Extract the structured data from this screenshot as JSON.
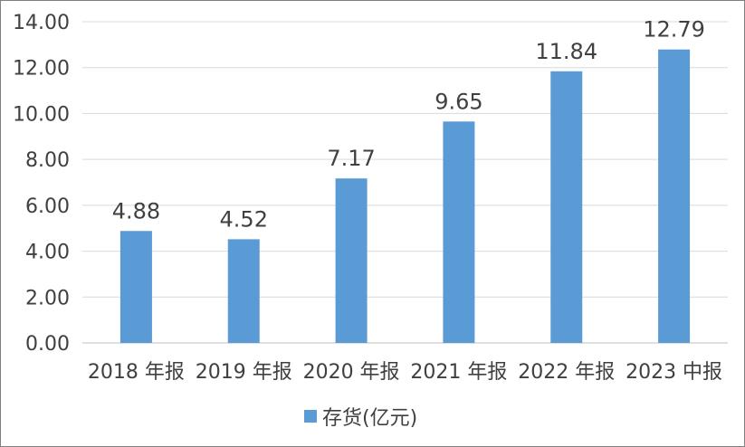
{
  "chart_data": {
    "type": "bar",
    "categories": [
      "2018 年报",
      "2019 年报",
      "2020 年报",
      "2021 年报",
      "2022 年报",
      "2023 中报"
    ],
    "series": [
      {
        "name": "存货(亿元)",
        "values": [
          4.88,
          4.52,
          7.17,
          9.65,
          11.84,
          12.79
        ]
      }
    ],
    "value_labels": [
      "4.88",
      "4.52",
      "7.17",
      "9.65",
      "11.84",
      "12.79"
    ],
    "y_ticks": [
      "0.00",
      "2.00",
      "4.00",
      "6.00",
      "8.00",
      "10.00",
      "12.00",
      "14.00"
    ],
    "ylim": [
      0,
      14
    ],
    "grid": true,
    "legend_position": "bottom",
    "bar_color": "#5b9bd5",
    "grid_color": "#d9d9d9",
    "text_color": "#404040"
  }
}
